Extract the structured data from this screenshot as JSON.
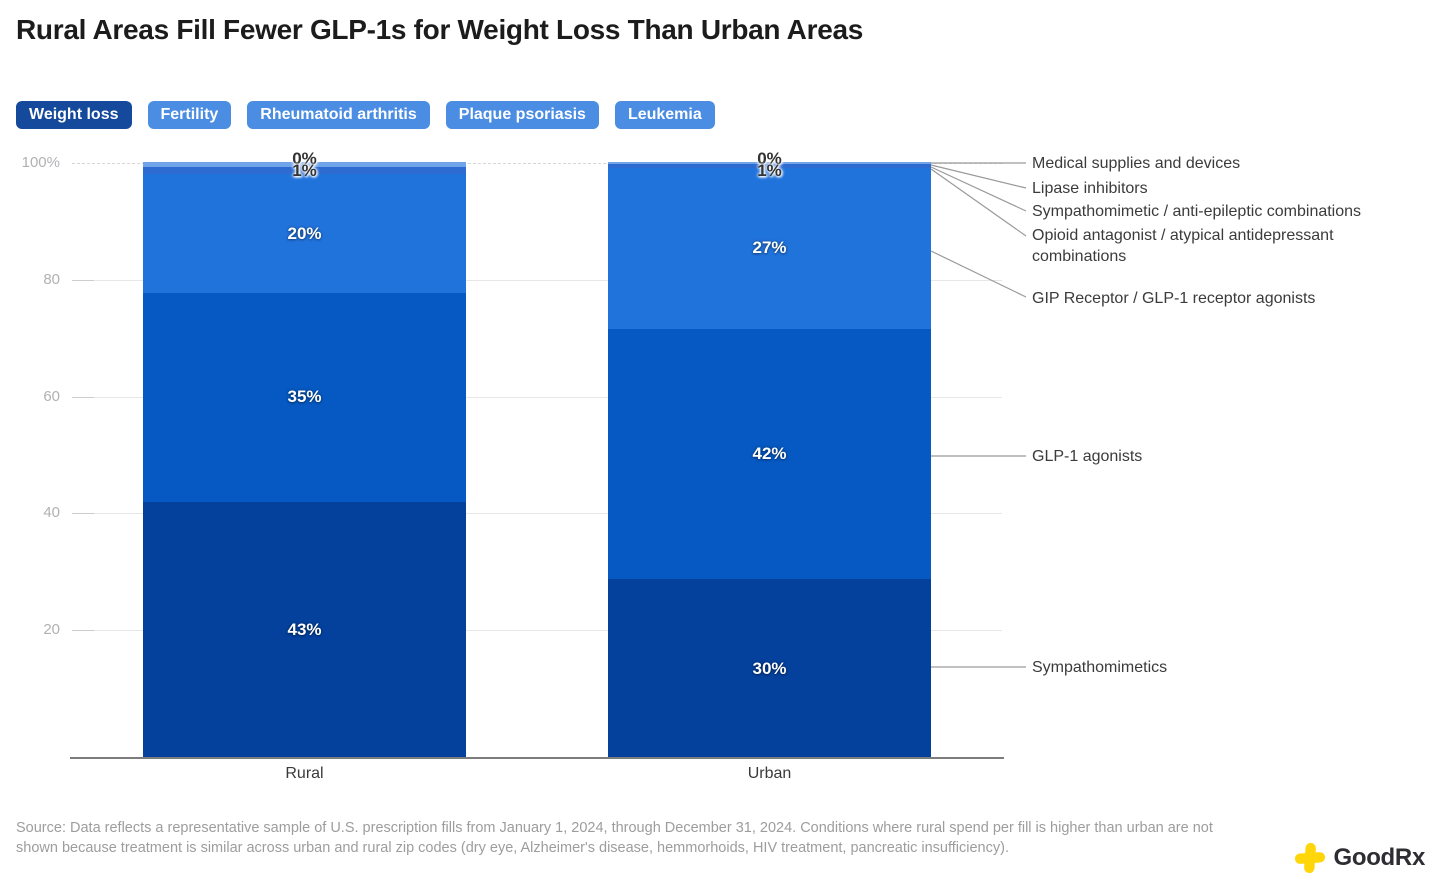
{
  "title": "Rural Areas Fill Fewer GLP-1s for Weight Loss Than Urban Areas",
  "tabs": [
    {
      "label": "Weight loss",
      "active": true
    },
    {
      "label": "Fertility",
      "active": false
    },
    {
      "label": "Rheumatoid arthritis",
      "active": false
    },
    {
      "label": "Plaque psoriasis",
      "active": false
    },
    {
      "label": "Leukemia",
      "active": false
    }
  ],
  "colors": {
    "tab_active": "#15499c",
    "tab_inactive": "#4a8de2",
    "sympathomimetics": "#04419d",
    "glp1_agonists": "#0659c2",
    "gip_receptor": "#2173dc",
    "small_band": "#2d6bd0",
    "top_sliver": "#6fa3ea",
    "logo_yellow": "#FFD60A"
  },
  "y_axis": [
    "100%",
    "80",
    "60",
    "40",
    "20"
  ],
  "chart_data": {
    "type": "bar",
    "subtype": "stacked-percent-column",
    "categories": [
      "Rural",
      "Urban"
    ],
    "series": [
      {
        "name": "Medical supplies and devices",
        "values": [
          0,
          0
        ]
      },
      {
        "name": "Lipase inhibitors",
        "values": [
          1,
          1
        ]
      },
      {
        "name": "Sympathomimetic / anti-epileptic combinations",
        "values": [
          0,
          0
        ]
      },
      {
        "name": "Opioid antagonist / atypical antidepressant combinations",
        "values": [
          0,
          0
        ]
      },
      {
        "name": "GIP Receptor / GLP-1 receptor agonists",
        "values": [
          20,
          27
        ]
      },
      {
        "name": "GLP-1 agonists",
        "values": [
          35,
          42
        ]
      },
      {
        "name": "Sympathomimetics",
        "values": [
          43,
          30
        ]
      }
    ],
    "ylim": [
      0,
      100
    ],
    "y_tick_labels": [
      "100%",
      "80",
      "60",
      "40",
      "20"
    ],
    "grid": true,
    "legend_position": "right",
    "value_label_unit": "%"
  },
  "bars": [
    {
      "category": "Rural",
      "label_zero": "0%",
      "label_one": "1%",
      "segments": [
        {
          "key": "sympathomimetics",
          "series": "Sympathomimetics",
          "value_label": "43%",
          "height_pct": 43,
          "color": "#04419d"
        },
        {
          "key": "glp-1-agonists",
          "series": "GLP-1 agonists",
          "value_label": "35%",
          "height_pct": 35,
          "color": "#0659c2"
        },
        {
          "key": "gip-receptor-glp-1-receptor-agonists",
          "series": "GIP Receptor / GLP-1 receptor agonists",
          "value_label": "20%",
          "height_pct": 20,
          "color": "#2173dc"
        },
        {
          "key": "lipase-inhibitors",
          "series": "Lipase inhibitors",
          "value_label": "",
          "height_pct": 1.2,
          "color": "#2d6bd0"
        },
        {
          "key": "medical-supplies-and-devices",
          "series": "Medical supplies and devices",
          "value_label": "",
          "height_pct": 0.8,
          "color": "#6fa3ea"
        }
      ]
    },
    {
      "category": "Urban",
      "label_zero": "0%",
      "label_one": "1%",
      "segments": [
        {
          "key": "sympathomimetics",
          "series": "Sympathomimetics",
          "value_label": "30%",
          "height_pct": 30,
          "color": "#04419d"
        },
        {
          "key": "glp-1-agonists",
          "series": "GLP-1 agonists",
          "value_label": "42%",
          "height_pct": 42,
          "color": "#0659c2"
        },
        {
          "key": "gip-receptor-glp-1-receptor-agonists",
          "series": "GIP Receptor / GLP-1 receptor agonists",
          "value_label": "27%",
          "height_pct": 27,
          "color": "#2173dc"
        },
        {
          "key": "lipase-inhibitors",
          "series": "Lipase inhibitors",
          "value_label": "",
          "height_pct": 0.6,
          "color": "#2d6bd0"
        },
        {
          "key": "medical-supplies-and-devices",
          "series": "Medical supplies and devices",
          "value_label": "",
          "height_pct": 0.4,
          "color": "#6fa3ea"
        }
      ]
    }
  ],
  "annotations": [
    {
      "label": "Medical supplies and devices"
    },
    {
      "label": "Lipase inhibitors"
    },
    {
      "label": "Sympathomimetic / anti-epileptic combinations"
    },
    {
      "label": "Opioid antagonist / atypical antidepressant combinations"
    },
    {
      "label": "GIP Receptor / GLP-1 receptor agonists"
    },
    {
      "label": "GLP-1 agonists"
    },
    {
      "label": "Sympathomimetics"
    }
  ],
  "source": "Source: Data reflects a representative sample of U.S. prescription fills from January 1, 2024, through December 31, 2024. Conditions where rural spend per fill is higher than urban are not shown because treatment is similar across urban and rural zip codes (dry eye, Alzheimer's disease, hemmorhoids, HIV treatment, pancreatic insufficiency).",
  "logo": {
    "text": "GoodRx"
  }
}
